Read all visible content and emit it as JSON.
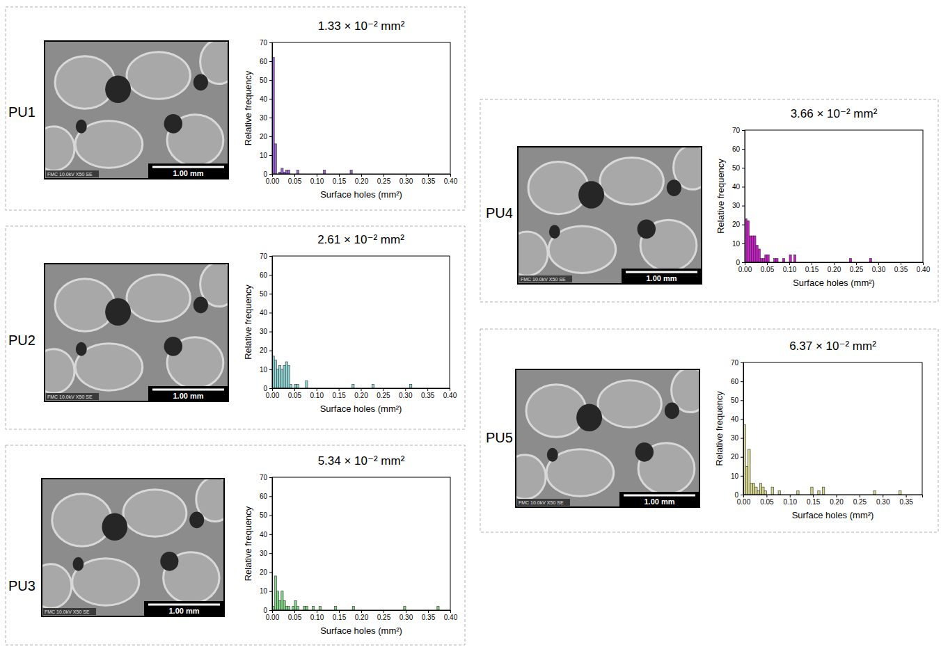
{
  "chart_data": [
    {
      "type": "histogram",
      "title": "1.33 × 10⁻² mm²",
      "xlabel": "Surface holes (mm²)",
      "ylabel": "Relative frequency",
      "annotations": {
        "panel": "PU1",
        "scale_bar": "1.00 mm",
        "sem_info": "FMC 10.0kV X50 SE"
      },
      "color": "#9a63d6",
      "bins": [
        0,
        0.005,
        0.01,
        0.015,
        0.02,
        0.025,
        0.03,
        0.035,
        0.04,
        0.045,
        0.05,
        0.055,
        0.06,
        0.065,
        0.07,
        0.075,
        0.08,
        0.085,
        0.09,
        0.095,
        0.1,
        0.105,
        0.11,
        0.115,
        0.12,
        0.125,
        0.13,
        0.135,
        0.14,
        0.145,
        0.15,
        0.155,
        0.16,
        0.165,
        0.17,
        0.175,
        0.18
      ],
      "values": [
        62,
        16,
        0,
        1,
        3,
        1,
        2,
        2,
        0,
        0,
        0,
        2,
        0,
        0,
        0,
        0,
        0,
        0,
        0,
        0,
        0,
        0,
        0,
        2,
        0,
        0,
        0,
        0,
        0,
        0,
        0,
        0,
        0,
        0,
        0,
        2
      ],
      "xlim": [
        0,
        0.4
      ],
      "xticks": [
        {
          "value": 0,
          "label": "0.00"
        },
        {
          "value": 0.05,
          "label": "0.05"
        },
        {
          "value": 0.1,
          "label": "0.10"
        },
        {
          "value": 0.15,
          "label": "0.15"
        },
        {
          "value": 0.2,
          "label": "0.20"
        },
        {
          "value": 0.25,
          "label": "0.25"
        },
        {
          "value": 0.3,
          "label": "0.30"
        },
        {
          "value": 0.35,
          "label": "0.35"
        },
        {
          "value": 0.4,
          "label": "0.40"
        }
      ],
      "ylim": [
        0,
        70
      ],
      "yticks": [
        0,
        10,
        20,
        30,
        40,
        50,
        60,
        70
      ]
    },
    {
      "type": "histogram",
      "title": "2.61 × 10⁻² mm²",
      "xlabel": "Surface holes (mm²)",
      "ylabel": "Relative frequency",
      "annotations": {
        "panel": "PU2",
        "scale_bar": "1.00 mm",
        "sem_info": "FMC 10.0kV X50 SE"
      },
      "color": "#8fd6d6",
      "bins": [
        0,
        0.005,
        0.01,
        0.015,
        0.02,
        0.025,
        0.03,
        0.035,
        0.04,
        0.045,
        0.05,
        0.055,
        0.06,
        0.065,
        0.07,
        0.075,
        0.08,
        0.085,
        0.09,
        0.095,
        0.1,
        0.105,
        0.11,
        0.115,
        0.12,
        0.125,
        0.13,
        0.135,
        0.14,
        0.145,
        0.15,
        0.155,
        0.16,
        0.165,
        0.17,
        0.175,
        0.18,
        0.185,
        0.19,
        0.195,
        0.2,
        0.205,
        0.21,
        0.215,
        0.22,
        0.225,
        0.23,
        0.235,
        0.24,
        0.245,
        0.25,
        0.255,
        0.26,
        0.265,
        0.27,
        0.275,
        0.28,
        0.285,
        0.29,
        0.295,
        0.3,
        0.305,
        0.31,
        0.315
      ],
      "values": [
        17,
        15,
        10,
        12,
        10,
        12,
        14,
        12,
        2,
        0,
        2,
        2,
        0,
        0,
        0,
        4,
        0,
        0,
        0,
        0,
        0,
        0,
        0,
        0,
        0,
        0,
        0,
        0,
        0,
        0,
        0,
        0,
        0,
        0,
        0,
        0,
        2,
        0,
        0,
        0,
        0,
        0,
        0,
        0,
        0,
        2,
        0,
        0,
        0,
        0,
        0,
        0,
        0,
        0,
        0,
        0,
        0,
        0,
        0,
        0,
        0,
        0,
        2
      ],
      "xlim": [
        0,
        0.4
      ],
      "xticks": [
        {
          "value": 0,
          "label": "0.00"
        },
        {
          "value": 0.05,
          "label": "0.05"
        },
        {
          "value": 0.1,
          "label": "0.10"
        },
        {
          "value": 0.15,
          "label": "0.15"
        },
        {
          "value": 0.2,
          "label": "0.20"
        },
        {
          "value": 0.25,
          "label": "0.25"
        },
        {
          "value": 0.3,
          "label": "0.30"
        },
        {
          "value": 0.35,
          "label": "0.35"
        },
        {
          "value": 0.4,
          "label": "0.40"
        }
      ],
      "ylim": [
        0,
        70
      ],
      "yticks": [
        0,
        10,
        20,
        30,
        40,
        50,
        60,
        70
      ]
    },
    {
      "type": "histogram",
      "title": "5.34 × 10⁻² mm²",
      "xlabel": "Surface holes (mm²)",
      "ylabel": "Relative frequency",
      "annotations": {
        "panel": "PU3",
        "scale_bar": "1.00 mm",
        "sem_info": "FMC 10.0kV X50 SE"
      },
      "color": "#86d98a",
      "bins": [
        0,
        0.005,
        0.01,
        0.015,
        0.02,
        0.025,
        0.03,
        0.035,
        0.04,
        0.045,
        0.05,
        0.055,
        0.06,
        0.065,
        0.07,
        0.075,
        0.08,
        0.085,
        0.09,
        0.095,
        0.1,
        0.105,
        0.11,
        0.115,
        0.12,
        0.125,
        0.13,
        0.135,
        0.14,
        0.145,
        0.15,
        0.155,
        0.16,
        0.165,
        0.17,
        0.175,
        0.18,
        0.185,
        0.19,
        0.195,
        0.2,
        0.205,
        0.21,
        0.215,
        0.22,
        0.225,
        0.23,
        0.235,
        0.24,
        0.245,
        0.25,
        0.255,
        0.26,
        0.265,
        0.27,
        0.275,
        0.28,
        0.285,
        0.29,
        0.295,
        0.3,
        0.305,
        0.31,
        0.315,
        0.32,
        0.325,
        0.33,
        0.335,
        0.34,
        0.345,
        0.35,
        0.355,
        0.36,
        0.365,
        0.37,
        0.375
      ],
      "values": [
        2,
        18,
        10,
        5,
        10,
        5,
        2,
        2,
        0,
        2,
        5,
        2,
        0,
        0,
        2,
        2,
        0,
        0,
        2,
        0,
        0,
        2,
        0,
        0,
        0,
        0,
        0,
        0,
        2,
        0,
        0,
        0,
        0,
        0,
        0,
        0,
        2,
        0,
        0,
        0,
        0,
        0,
        0,
        0,
        0,
        0,
        0,
        0,
        0,
        0,
        0,
        0,
        0,
        0,
        0,
        0,
        0,
        0,
        0,
        2,
        0,
        0,
        0,
        0,
        0,
        0,
        0,
        0,
        0,
        0,
        0,
        0,
        0,
        0,
        2
      ],
      "xlim": [
        0,
        0.4
      ],
      "xticks": [
        {
          "value": 0,
          "label": "0.00"
        },
        {
          "value": 0.05,
          "label": "0.05"
        },
        {
          "value": 0.1,
          "label": "0.10"
        },
        {
          "value": 0.15,
          "label": "0.15"
        },
        {
          "value": 0.2,
          "label": "0.20"
        },
        {
          "value": 0.25,
          "label": "0.25"
        },
        {
          "value": 0.3,
          "label": "0.30"
        },
        {
          "value": 0.35,
          "label": "0.35"
        },
        {
          "value": 0.4,
          "label": "0.40"
        }
      ],
      "ylim": [
        0,
        70
      ],
      "yticks": [
        0,
        10,
        20,
        30,
        40,
        50,
        60,
        70
      ]
    },
    {
      "type": "histogram",
      "title": "3.66 × 10⁻² mm²",
      "xlabel": "Surface holes (mm²)",
      "ylabel": "Relative frequency",
      "annotations": {
        "panel": "PU4",
        "scale_bar": "1.00 mm",
        "sem_info": "FMC 10.0kV X50 SE"
      },
      "color": "#cc1fcc",
      "bins": [
        0,
        0.005,
        0.01,
        0.015,
        0.02,
        0.025,
        0.03,
        0.035,
        0.04,
        0.045,
        0.05,
        0.055,
        0.06,
        0.065,
        0.07,
        0.075,
        0.08,
        0.085,
        0.09,
        0.095,
        0.1,
        0.105,
        0.11,
        0.115,
        0.12,
        0.125,
        0.13,
        0.135,
        0.14,
        0.145,
        0.15,
        0.155,
        0.16,
        0.165,
        0.17,
        0.175,
        0.18,
        0.185,
        0.19,
        0.195,
        0.2,
        0.205,
        0.21,
        0.215,
        0.22,
        0.225,
        0.23,
        0.235,
        0.24,
        0.245,
        0.25,
        0.255,
        0.26,
        0.265,
        0.27,
        0.275,
        0.28,
        0.285
      ],
      "values": [
        23,
        22,
        14,
        14,
        14,
        9,
        7,
        2,
        2,
        4,
        4,
        0,
        0,
        2,
        2,
        0,
        0,
        2,
        0,
        0,
        4,
        0,
        4,
        0,
        0,
        0,
        0,
        0,
        0,
        0,
        0,
        0,
        0,
        0,
        0,
        0,
        0,
        0,
        0,
        0,
        0,
        0,
        0,
        0,
        0,
        0,
        0,
        2,
        0,
        0,
        0,
        0,
        0,
        0,
        0,
        0,
        2
      ],
      "xlim": [
        0,
        0.4
      ],
      "xticks": [
        {
          "value": 0,
          "label": "0.00"
        },
        {
          "value": 0.05,
          "label": "0.05"
        },
        {
          "value": 0.1,
          "label": "0.10"
        },
        {
          "value": 0.15,
          "label": "0.15"
        },
        {
          "value": 0.2,
          "label": "0.20"
        },
        {
          "value": 0.25,
          "label": "0.25"
        },
        {
          "value": 0.3,
          "label": "0.30"
        },
        {
          "value": 0.35,
          "label": "0.35"
        },
        {
          "value": 0.4,
          "label": "0.40"
        }
      ],
      "ylim": [
        0,
        70
      ],
      "yticks": [
        0,
        10,
        20,
        30,
        40,
        50,
        60,
        70
      ]
    },
    {
      "type": "histogram",
      "title": "6.37 × 10⁻² mm²",
      "xlabel": "Surface holes (mm²)",
      "ylabel": "Relative frequency",
      "annotations": {
        "panel": "PU5",
        "scale_bar": "1.00 mm",
        "sem_info": "FMC 10.0kV X50 SE"
      },
      "color": "#d8d88e",
      "bins": [
        0,
        0.005,
        0.01,
        0.015,
        0.02,
        0.025,
        0.03,
        0.035,
        0.04,
        0.045,
        0.05,
        0.055,
        0.06,
        0.065,
        0.07,
        0.075,
        0.08,
        0.085,
        0.09,
        0.095,
        0.1,
        0.105,
        0.11,
        0.115,
        0.12,
        0.125,
        0.13,
        0.135,
        0.14,
        0.145,
        0.15,
        0.155,
        0.16,
        0.165,
        0.17,
        0.175,
        0.18,
        0.185,
        0.19,
        0.195,
        0.2,
        0.205,
        0.21,
        0.215,
        0.22,
        0.225,
        0.23,
        0.235,
        0.24,
        0.245,
        0.25,
        0.255,
        0.26,
        0.265,
        0.27,
        0.275,
        0.28,
        0.285,
        0.29,
        0.295,
        0.3,
        0.305,
        0.31,
        0.315,
        0.32,
        0.325,
        0.33,
        0.335,
        0.34
      ],
      "values": [
        37,
        15,
        24,
        6,
        6,
        4,
        2,
        6,
        4,
        2,
        0,
        0,
        4,
        0,
        0,
        2,
        0,
        0,
        0,
        0,
        0,
        0,
        0,
        2,
        0,
        0,
        0,
        0,
        0,
        4,
        0,
        0,
        2,
        0,
        4,
        0,
        0,
        0,
        0,
        0,
        0,
        0,
        0,
        0,
        0,
        0,
        0,
        0,
        0,
        0,
        0,
        0,
        0,
        0,
        0,
        0,
        2,
        0,
        0,
        0,
        0,
        0,
        0,
        0,
        0,
        0,
        0,
        2
      ],
      "xlim": [
        0,
        0.385
      ],
      "xticks": [
        {
          "value": 0,
          "label": "0.00"
        },
        {
          "value": 0.05,
          "label": "0.05"
        },
        {
          "value": 0.1,
          "label": "0.10"
        },
        {
          "value": 0.15,
          "label": "0.15"
        },
        {
          "value": 0.2,
          "label": "0.20"
        },
        {
          "value": 0.25,
          "label": "0.25"
        },
        {
          "value": 0.3,
          "label": "0.30"
        },
        {
          "value": 0.35,
          "label": "0.35"
        }
      ],
      "ylim": [
        0,
        70
      ],
      "yticks": [
        0,
        10,
        20,
        30,
        40,
        50,
        60,
        70
      ]
    }
  ]
}
